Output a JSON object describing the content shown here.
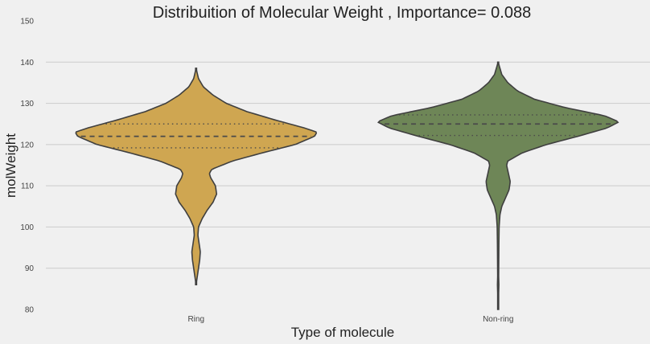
{
  "chart_data": {
    "type": "violin",
    "title": "Distribuition of Molecular Weight , Importance= 0.088",
    "xlabel": "Type of molecule",
    "ylabel": "molWeight",
    "ylim": [
      80,
      150
    ],
    "yticks": [
      80,
      90,
      100,
      110,
      120,
      130,
      140,
      150
    ],
    "grid": true,
    "categories": [
      "Ring",
      "Non-ring"
    ],
    "series": [
      {
        "name": "Ring",
        "color": "#cfa651",
        "min": 86,
        "max": 138.5,
        "q1": 119.2,
        "median": 122.0,
        "q3": 125.0,
        "density": [
          [
            86,
            0.0
          ],
          [
            88,
            0.01
          ],
          [
            90,
            0.02
          ],
          [
            92,
            0.03
          ],
          [
            94,
            0.035
          ],
          [
            96,
            0.025
          ],
          [
            98,
            0.015
          ],
          [
            100,
            0.02
          ],
          [
            102,
            0.05
          ],
          [
            104,
            0.09
          ],
          [
            106,
            0.14
          ],
          [
            108,
            0.17
          ],
          [
            110,
            0.16
          ],
          [
            112,
            0.12
          ],
          [
            113,
            0.11
          ],
          [
            114,
            0.13
          ],
          [
            116,
            0.3
          ],
          [
            118,
            0.55
          ],
          [
            120,
            0.82
          ],
          [
            122,
            0.98
          ],
          [
            123,
            1.0
          ],
          [
            124,
            0.9
          ],
          [
            126,
            0.65
          ],
          [
            128,
            0.42
          ],
          [
            130,
            0.25
          ],
          [
            132,
            0.14
          ],
          [
            134,
            0.06
          ],
          [
            136,
            0.02
          ],
          [
            138.5,
            0.0
          ]
        ]
      },
      {
        "name": "Non-ring",
        "color": "#6e8657",
        "min": 80,
        "max": 140,
        "q1": 122.2,
        "median": 125.0,
        "q3": 127.2,
        "density": [
          [
            80,
            0.0
          ],
          [
            84,
            0.004
          ],
          [
            86,
            0.006
          ],
          [
            88,
            0.004
          ],
          [
            92,
            0.005
          ],
          [
            96,
            0.006
          ],
          [
            100,
            0.008
          ],
          [
            103,
            0.015
          ],
          [
            105,
            0.03
          ],
          [
            107,
            0.06
          ],
          [
            109,
            0.09
          ],
          [
            111,
            0.1
          ],
          [
            113,
            0.085
          ],
          [
            115,
            0.07
          ],
          [
            116,
            0.08
          ],
          [
            118,
            0.2
          ],
          [
            120,
            0.4
          ],
          [
            122,
            0.66
          ],
          [
            124,
            0.9
          ],
          [
            125.5,
            1.0
          ],
          [
            127,
            0.88
          ],
          [
            129,
            0.55
          ],
          [
            131,
            0.3
          ],
          [
            133,
            0.16
          ],
          [
            135,
            0.08
          ],
          [
            137,
            0.03
          ],
          [
            140,
            0.0
          ]
        ]
      }
    ]
  }
}
